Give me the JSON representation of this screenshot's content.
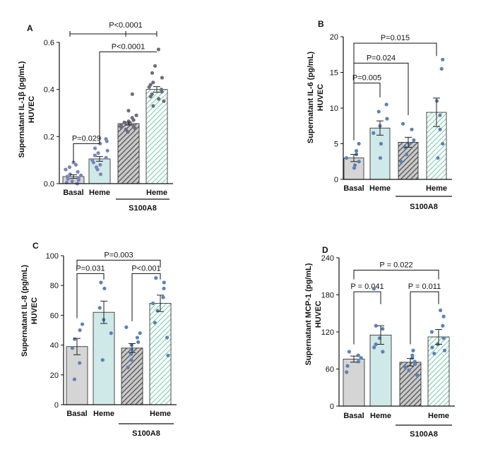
{
  "chart_data": [
    {
      "type": "bar",
      "panel": "A",
      "ylabel_line1": "Supernatant IL-1β (pg/mL)",
      "ylabel_line2": "HUVEC",
      "ylim": [
        0,
        0.6
      ],
      "yticks": [
        "0.0",
        "0.2",
        "0.4",
        "0.6"
      ],
      "categories": [
        "Basal",
        "Heme",
        "",
        "Heme"
      ],
      "group_label": "S100A8",
      "bar_fills": [
        "#d5d5d5",
        "#cfe8e8",
        "#7e7e7e",
        "#a8e0cd"
      ],
      "bar_patterns": [
        "solid",
        "solid",
        "hatch",
        "hatch"
      ],
      "values": [
        0.03,
        0.105,
        0.255,
        0.4
      ],
      "errors": [
        0.008,
        0.01,
        0.006,
        0.012
      ],
      "points": [
        [
          0.0,
          0.005,
          0.01,
          0.015,
          0.02,
          0.025,
          0.03,
          0.035,
          0.04,
          0.05,
          0.06,
          0.07,
          0.08,
          0.09
        ],
        [
          0.04,
          0.06,
          0.07,
          0.08,
          0.09,
          0.1,
          0.11,
          0.12,
          0.13,
          0.14,
          0.15,
          0.17,
          0.18,
          0.19
        ],
        [
          0.22,
          0.23,
          0.235,
          0.24,
          0.245,
          0.25,
          0.255,
          0.26,
          0.265,
          0.27,
          0.28,
          0.29,
          0.31,
          0.38
        ],
        [
          0.33,
          0.35,
          0.36,
          0.37,
          0.38,
          0.39,
          0.4,
          0.41,
          0.42,
          0.43,
          0.45,
          0.47,
          0.5,
          0.57
        ]
      ],
      "dot_colors": [
        "#7a86b8",
        "#7a86b8",
        "#6d6d80",
        "#6d6d80"
      ],
      "comparisons": [
        {
          "from": 0,
          "to": 1,
          "label": "P=0.029",
          "y": 0.17,
          "legs": [
            0.09,
            0.2
          ]
        },
        {
          "from": 1,
          "to": 3,
          "label": "P<0.0001",
          "y": 0.56,
          "legs": [
            0.2,
            0.56
          ]
        },
        {
          "from": 0,
          "to": 3,
          "label": "P<0.0001",
          "y": 0.64,
          "style": "span"
        }
      ]
    },
    {
      "type": "bar",
      "panel": "B",
      "ylabel_line1": "Supernatant IL-6 (pg/mL)",
      "ylabel_line2": "HUVEC",
      "ylim": [
        0,
        20
      ],
      "yticks": [
        "0",
        "5",
        "10",
        "15",
        "20"
      ],
      "categories": [
        "Basal",
        "Heme",
        "",
        "Heme"
      ],
      "group_label": "S100A8",
      "bar_fills": [
        "#d5d5d5",
        "#cfe8e8",
        "#7e7e7e",
        "#a8e0cd"
      ],
      "bar_patterns": [
        "solid",
        "solid",
        "hatch",
        "hatch"
      ],
      "values": [
        3.0,
        7.2,
        5.2,
        9.4
      ],
      "errors": [
        0.5,
        1.0,
        0.7,
        2.0
      ],
      "points": [
        [
          1.6,
          2.0,
          2.5,
          3.0,
          3.5,
          4.0,
          5.0
        ],
        [
          3.0,
          5.0,
          6.5,
          7.5,
          8.5,
          9.5,
          10.5
        ],
        [
          2.5,
          3.5,
          4.5,
          5.0,
          5.5,
          7.0,
          7.8
        ],
        [
          3.0,
          5.0,
          7.0,
          9.0,
          11.0,
          15.5,
          16.8
        ]
      ],
      "dot_colors": [
        "#5b82b8",
        "#5b82b8",
        "#5b82b8",
        "#5b82b8"
      ],
      "comparisons": [
        {
          "from": 0,
          "to": 1,
          "label": "P=0.005",
          "y": 13.5,
          "legs": [
            5.5,
            11.5
          ]
        },
        {
          "from": 0,
          "to": 2,
          "label": "P=0.024",
          "y": 16.3,
          "legs": [
            5.5,
            9.0
          ]
        },
        {
          "from": 0,
          "to": 3,
          "label": "P=0.015",
          "y": 19.1,
          "legs": [
            5.5,
            17.3
          ]
        }
      ]
    },
    {
      "type": "bar",
      "panel": "C",
      "ylabel_line1": "Supernatant IL-8 (pg/mL)",
      "ylabel_line2": "HUVEC",
      "ylim": [
        0,
        100
      ],
      "yticks": [
        "0",
        "20",
        "40",
        "60",
        "80",
        "100"
      ],
      "categories": [
        "Basal",
        "Heme",
        "",
        "Heme"
      ],
      "group_label": "S100A8",
      "bar_fills": [
        "#d5d5d5",
        "#cfe8e8",
        "#7e7e7e",
        "#a8e0cd"
      ],
      "bar_patterns": [
        "solid",
        "solid",
        "hatch",
        "hatch"
      ],
      "values": [
        39,
        62,
        38,
        68
      ],
      "errors": [
        5.5,
        7.5,
        3.0,
        5.5
      ],
      "points": [
        [
          17,
          28,
          38,
          44,
          50,
          54
        ],
        [
          30,
          48,
          57,
          65,
          78,
          82
        ],
        [
          25,
          30,
          34,
          37,
          40,
          42,
          45,
          48,
          52
        ],
        [
          33,
          45,
          55,
          63,
          68,
          72,
          78,
          82,
          85
        ]
      ],
      "dot_colors": [
        "#5b82b8",
        "#5b82b8",
        "#5b82b8",
        "#5b82b8"
      ],
      "comparisons": [
        {
          "from": 0,
          "to": 1,
          "label": "P=0.031",
          "y": 88,
          "legs": [
            58,
            84
          ]
        },
        {
          "from": 2,
          "to": 3,
          "label": "P<0.001",
          "y": 88,
          "legs": [
            56,
            84
          ]
        },
        {
          "from": 0,
          "to": 3,
          "label": "P=0.003",
          "y": 97,
          "legs": [
            92,
            92
          ]
        }
      ]
    },
    {
      "type": "bar",
      "panel": "D",
      "ylabel_line1": "Supernatant MCP-1 (pg/mL)",
      "ylabel_line2": "HUVEC",
      "ylim": [
        0,
        240
      ],
      "yticks": [
        "0",
        "60",
        "120",
        "180",
        "240"
      ],
      "categories": [
        "Basal",
        "Heme",
        "",
        "Heme"
      ],
      "group_label": "S100A8",
      "bar_fills": [
        "#d5d5d5",
        "#cfe8e8",
        "#7e7e7e",
        "#a8e0cd"
      ],
      "bar_patterns": [
        "solid",
        "solid",
        "hatch",
        "hatch"
      ],
      "values": [
        76,
        115,
        71,
        112
      ],
      "errors": [
        5,
        15,
        6,
        12
      ],
      "points": [
        [
          55,
          65,
          72,
          78,
          82,
          88
        ],
        [
          88,
          95,
          100,
          110,
          125,
          130,
          190
        ],
        [
          50,
          58,
          63,
          68,
          72,
          78,
          82,
          90
        ],
        [
          85,
          90,
          95,
          100,
          110,
          120,
          130,
          145,
          155
        ]
      ],
      "dot_colors": [
        "#5b82b8",
        "#5b82b8",
        "#5b82b8",
        "#5b82b8"
      ],
      "comparisons": [
        {
          "from": 0,
          "to": 1,
          "label": "P = 0.041",
          "y": 185,
          "legs": [
            100,
            165
          ]
        },
        {
          "from": 2,
          "to": 3,
          "label": "P = 0.011",
          "y": 185,
          "legs": [
            100,
            165
          ]
        },
        {
          "from": 0,
          "to": 3,
          "label": "P = 0.022",
          "y": 220,
          "legs": [
            205,
            205
          ]
        }
      ]
    }
  ]
}
